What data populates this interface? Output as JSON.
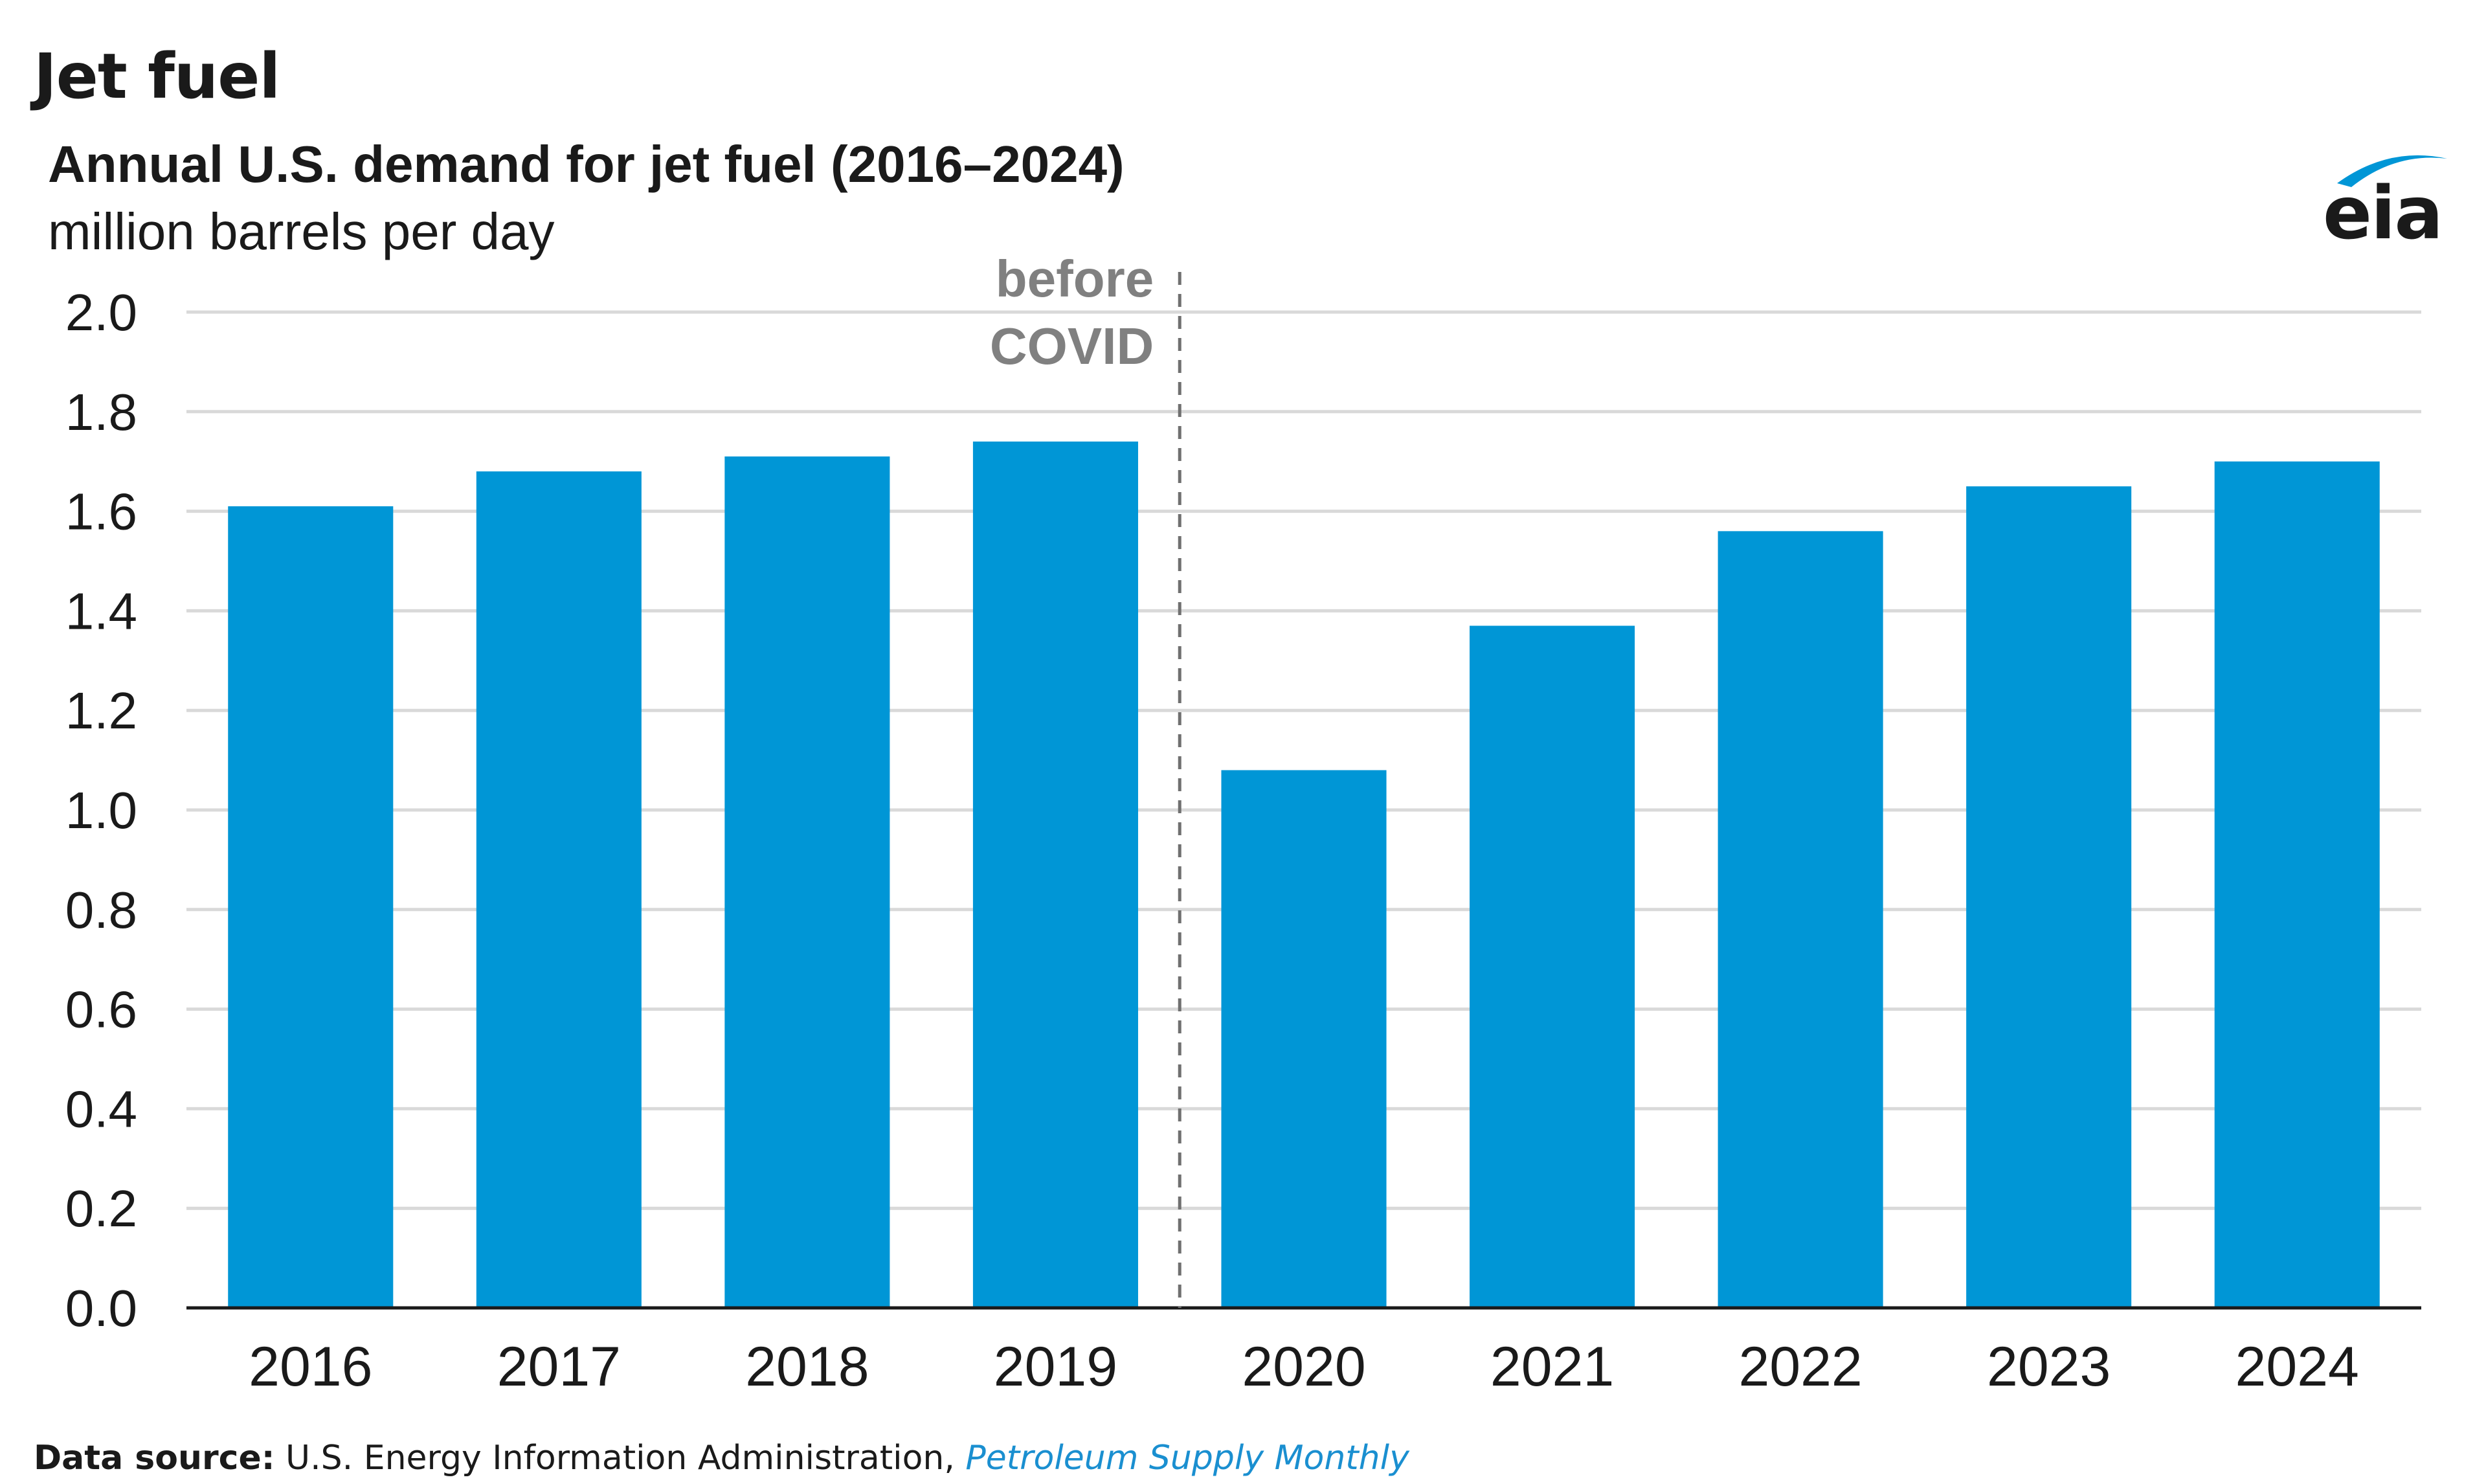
{
  "heading": "Jet fuel",
  "source": {
    "label": "Data source:",
    "org": " U.S. Energy Information Administration, ",
    "publication": "Petroleum Supply Monthly"
  },
  "logo": {
    "text": "eia",
    "color": "#0096d6"
  },
  "colors": {
    "bar": "#0096d6",
    "grid": "#d9d9d9",
    "annotation": "#808080",
    "axis": "#1a1a1a"
  },
  "chart_data": {
    "type": "bar",
    "title": "Annual U.S. demand for jet fuel (2016–2024)",
    "subtitle": "million barrels per day",
    "categories": [
      "2016",
      "2017",
      "2018",
      "2019",
      "2020",
      "2021",
      "2022",
      "2023",
      "2024"
    ],
    "values": [
      1.61,
      1.68,
      1.71,
      1.74,
      1.08,
      1.37,
      1.56,
      1.65,
      1.7
    ],
    "ylim": [
      0,
      2.0
    ],
    "yticks": [
      "0.0",
      "0.2",
      "0.4",
      "0.6",
      "0.8",
      "1.0",
      "1.2",
      "1.4",
      "1.6",
      "1.8",
      "2.0"
    ],
    "xlabel": "",
    "ylabel": "",
    "grid": true,
    "annotation": {
      "lines": [
        "before",
        "COVID"
      ],
      "between": [
        "2019",
        "2020"
      ]
    }
  }
}
